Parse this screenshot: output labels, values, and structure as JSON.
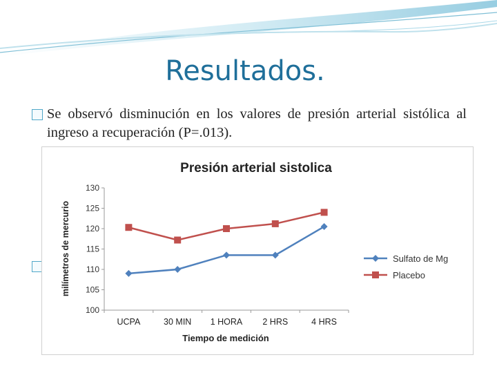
{
  "slide": {
    "title": "Resultados.",
    "bullet_text": "Se observó disminución en los valores de presión arterial sistólica al ingreso a recuperación (P=.013)."
  },
  "colors": {
    "title": "#1f6f9a",
    "sulfato": "#4f81bd",
    "placebo": "#c0504d",
    "bullet": "#4fa7c8"
  },
  "chart_data": {
    "type": "line",
    "title": "Presión arterial sistolica",
    "xlabel": "Tiempo de medición",
    "ylabel": "milímetros de mercurio",
    "categories": [
      "UCPA",
      "30 MIN",
      "1 HORA",
      "2 HRS",
      "4 HRS"
    ],
    "ylim": [
      100,
      130
    ],
    "yticks": [
      100,
      105,
      110,
      115,
      120,
      125,
      130
    ],
    "grid": false,
    "legend": "right",
    "series": [
      {
        "name": "Sulfato de Mg",
        "values": [
          109,
          110,
          113.5,
          113.5,
          120.5
        ],
        "color": "#4f81bd",
        "marker": "diamond"
      },
      {
        "name": "Placebo",
        "values": [
          120.3,
          117.2,
          120,
          121.2,
          124
        ],
        "color": "#c0504d",
        "marker": "square"
      }
    ]
  }
}
